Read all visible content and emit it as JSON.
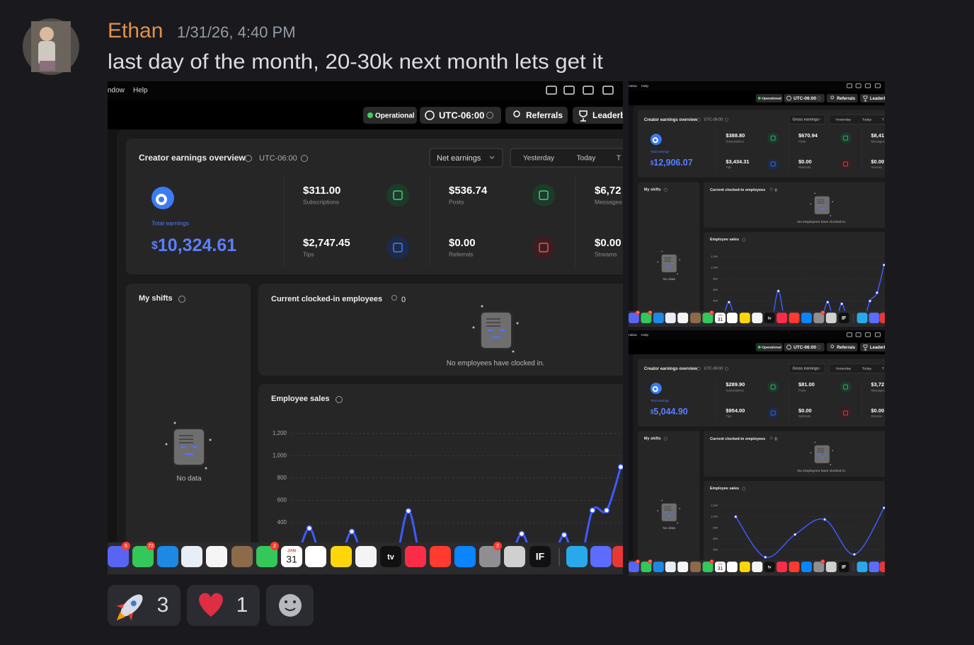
{
  "message": {
    "author": "Ethan",
    "timestamp": "1/31/26, 4:40 PM",
    "text": "last day of the month, 20-30k next month lets get it"
  },
  "dashboard": {
    "menu": [
      "ndow",
      "Help"
    ],
    "status": "Operational",
    "timezone": "UTC-06:00",
    "referrals": "Referrals",
    "leaderboard": "Leaderb",
    "overview_title": "Creator earnings overview",
    "tabs": [
      "Yesterday",
      "Today",
      "T"
    ],
    "total_label": "Total earnings",
    "currency": "$",
    "stat_labels": [
      "Subscriptions",
      "Posts",
      "Messages",
      "Tips",
      "Referrals",
      "Streams"
    ],
    "shifts_title": "My shifts",
    "no_data": "No data",
    "clocked_title": "Current clocked-in employees",
    "clocked_count": 0,
    "no_employees": "No employees have clocked in.",
    "sales_title": "Employee sales",
    "ylim": [
      0,
      1200
    ],
    "yticks": [
      {
        "value": 1200,
        "label": "1,200"
      },
      {
        "value": 1000,
        "label": "1,000"
      },
      800,
      600,
      400
    ],
    "dock": {
      "badges": [
        "6",
        "72",
        "2",
        "2"
      ],
      "calendar_month": "JAN",
      "calendar_day": "31",
      "tv": "tv",
      "if_app": "IF"
    }
  },
  "screenshots": [
    {
      "earnings_mode": "Net earnings",
      "total": "10,324.61",
      "stats": [
        "$311.00",
        "$536.74",
        "$6,72",
        "$2,747.45",
        "$0.00",
        "$0.00"
      ],
      "sales": {
        "type": "line",
        "color": "#3d5afe",
        "values": [
          0,
          350,
          0,
          0,
          320,
          0,
          0,
          0,
          505,
          0,
          0,
          0,
          0,
          0,
          0,
          0,
          300,
          0,
          0,
          290,
          0,
          510,
          510,
          900
        ]
      }
    },
    {
      "earnings_mode": "Gross earnings",
      "total": "12,906.07",
      "stats": [
        "$388.80",
        "$670.94",
        "$8,41",
        "$3,434.31",
        "$0.00",
        "$0.00"
      ],
      "sales": {
        "type": "line",
        "color": "#3d5afe",
        "values": [
          0,
          380,
          0,
          0,
          0,
          0,
          0,
          0,
          580,
          0,
          0,
          0,
          0,
          0,
          0,
          380,
          0,
          350,
          0,
          0,
          0,
          400,
          550,
          1050
        ]
      }
    },
    {
      "earnings_mode": "Gross earnings",
      "total": "5,044.90",
      "stats": [
        "$289.90",
        "$81.00",
        "$3,72",
        "$954.00",
        "$0.00",
        "$0.00"
      ],
      "sales": {
        "type": "line",
        "color": "#3d5afe",
        "values": [
          1000,
          270,
          680,
          950,
          320,
          1160
        ]
      }
    }
  ],
  "reactions": [
    {
      "count": 3
    },
    {
      "count": 1
    }
  ]
}
